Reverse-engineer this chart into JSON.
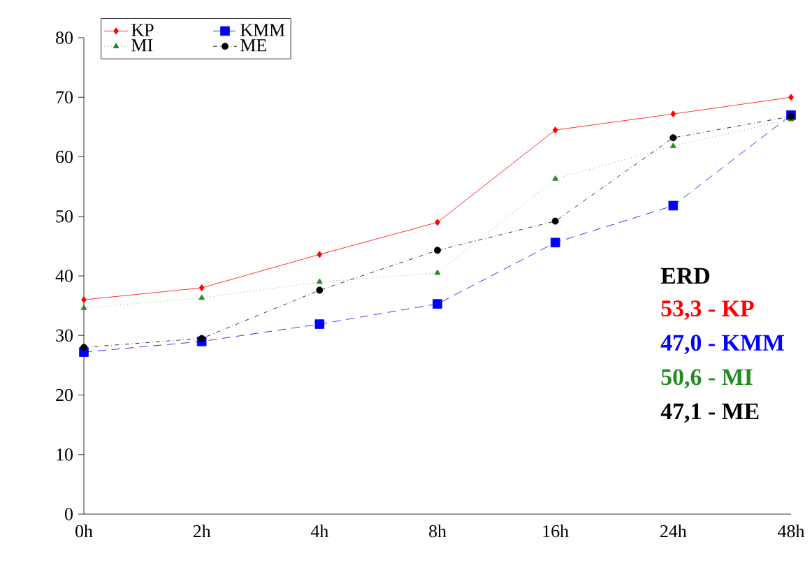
{
  "chart_data": {
    "type": "line",
    "categories": [
      "0h",
      "2h",
      "4h",
      "8h",
      "16h",
      "24h",
      "48h"
    ],
    "series": [
      {
        "name": "KP",
        "color": "#ff0000",
        "marker": "diamond",
        "line_style": "solid",
        "values": [
          36,
          38,
          43.6,
          49,
          64.5,
          67.2,
          70
        ]
      },
      {
        "name": "KMM",
        "color": "#0000ff",
        "marker": "square",
        "line_style": "dashed",
        "values": [
          27.2,
          29,
          31.9,
          35.3,
          45.6,
          51.8,
          67
        ]
      },
      {
        "name": "MI",
        "color": "#228b22",
        "marker": "triangle",
        "line_style": "dotted",
        "values": [
          34.6,
          36.3,
          39,
          40.5,
          56.3,
          61.8,
          66.3
        ]
      },
      {
        "name": "ME",
        "color": "#000000",
        "marker": "circle",
        "line_style": "dashdot",
        "values": [
          28,
          29.5,
          37.6,
          44.3,
          49.2,
          63.2,
          66.8
        ]
      }
    ],
    "ylim": [
      0,
      80
    ],
    "yticks": [
      0,
      10,
      20,
      30,
      40,
      50,
      60,
      70,
      80
    ],
    "grid": false,
    "legend": "top left",
    "annotations": [
      "ERD",
      "53,3 - KP",
      "47,0 - KMM",
      "50,6 - MI",
      "47,1 - ME"
    ]
  }
}
